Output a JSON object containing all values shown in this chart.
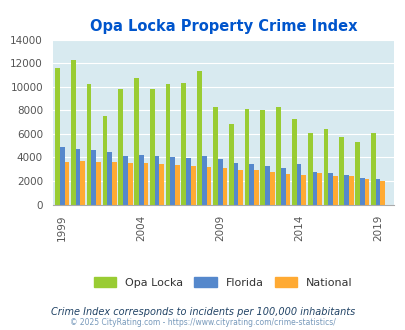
{
  "title": "Opa Locka Property Crime Index",
  "years": [
    1999,
    2000,
    2001,
    2002,
    2003,
    2004,
    2005,
    2006,
    2007,
    2008,
    2009,
    2010,
    2011,
    2012,
    2013,
    2014,
    2015,
    2016,
    2017,
    2018,
    2019
  ],
  "opa_locka": [
    11600,
    12300,
    10200,
    7500,
    9850,
    10700,
    9850,
    10200,
    10300,
    11300,
    8300,
    6850,
    8100,
    8000,
    8250,
    7300,
    6100,
    6400,
    5700,
    5300,
    6100
  ],
  "florida": [
    4900,
    4750,
    4650,
    4450,
    4150,
    4200,
    4100,
    4000,
    3950,
    4150,
    3900,
    3500,
    3450,
    3250,
    3100,
    3450,
    2750,
    2700,
    2550,
    2250,
    2200
  ],
  "national": [
    3600,
    3700,
    3600,
    3600,
    3500,
    3500,
    3450,
    3350,
    3275,
    3225,
    3100,
    2950,
    2900,
    2750,
    2600,
    2550,
    2700,
    2450,
    2400,
    2200,
    2000
  ],
  "opa_color": "#99cc33",
  "florida_color": "#5588cc",
  "national_color": "#ffaa33",
  "bg_color": "#d8eaf0",
  "ylim": [
    0,
    14000
  ],
  "yticks": [
    0,
    2000,
    4000,
    6000,
    8000,
    10000,
    12000,
    14000
  ],
  "xtick_labels": [
    "1999",
    "2004",
    "2009",
    "2014",
    "2019"
  ],
  "xtick_positions": [
    1999,
    2004,
    2009,
    2014,
    2019
  ],
  "title_color": "#0055cc",
  "subtitle": "Crime Index corresponds to incidents per 100,000 inhabitants",
  "footer": "© 2025 CityRating.com - https://www.cityrating.com/crime-statistics/",
  "subtitle_color": "#224466",
  "footer_color": "#7799bb"
}
